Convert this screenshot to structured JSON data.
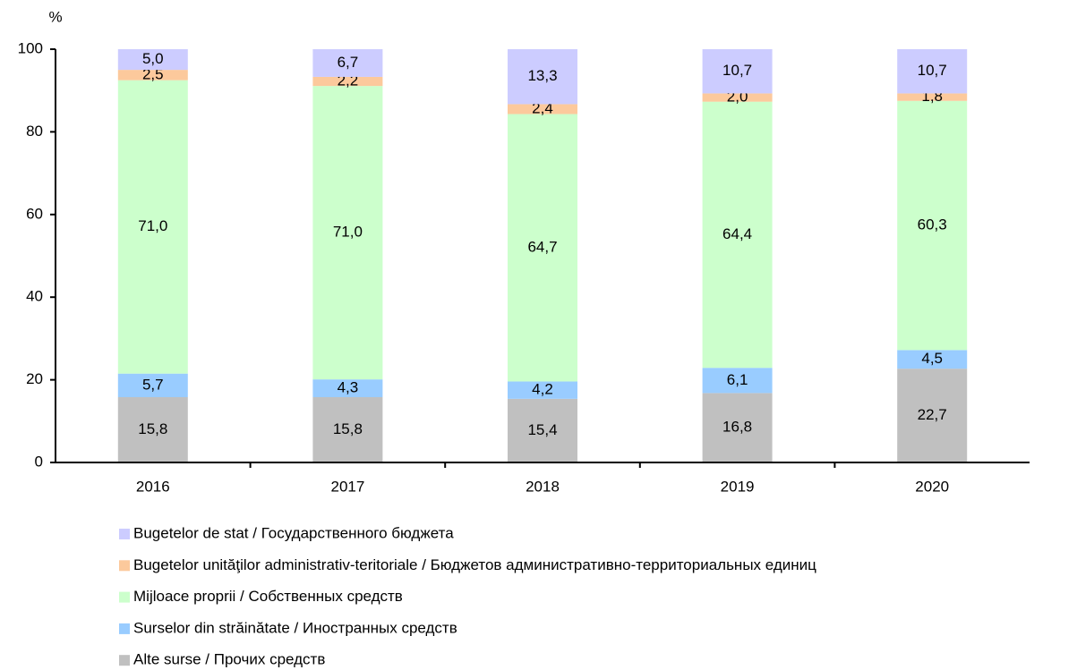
{
  "chart_data": {
    "type": "stacked_bar",
    "ylabel": "%",
    "categories": [
      "2016",
      "2017",
      "2018",
      "2019",
      "2020"
    ],
    "ylim": [
      0,
      100
    ],
    "yticks": [
      0,
      20,
      40,
      60,
      80,
      100
    ],
    "series": [
      {
        "name": "Bugetelor de stat / Государственного бюджета",
        "color": "#ccccff",
        "values": [
          5.0,
          6.7,
          13.3,
          10.7,
          10.7
        ],
        "value_labels": [
          "5,0",
          "6,7",
          "13,3",
          "10,7",
          "10,7"
        ]
      },
      {
        "name": "Bugetelor unităţilor administrativ-teritoriale / Бюджетов административно-территориальных единиц",
        "color": "#fcc99c",
        "values": [
          2.5,
          2.2,
          2.4,
          2.0,
          1.8
        ],
        "value_labels": [
          "2,5",
          "2,2",
          "2,4",
          "2,0",
          "1,8"
        ]
      },
      {
        "name": "Mijloace proprii / Собственных средств",
        "color": "#ccffcc",
        "values": [
          71.0,
          71.0,
          64.7,
          64.4,
          60.3
        ],
        "value_labels": [
          "71,0",
          "71,0",
          "64,7",
          "64,4",
          "60,3"
        ]
      },
      {
        "name": "Surselor din străinătate / Иностранных средств",
        "color": "#99ccff",
        "values": [
          5.7,
          4.3,
          4.2,
          6.1,
          4.5
        ],
        "value_labels": [
          "5,7",
          "4,3",
          "4,2",
          "6,1",
          "4,5"
        ]
      },
      {
        "name": "Alte surse / Прочих средств",
        "color": "#c0c0c0",
        "values": [
          15.8,
          15.8,
          15.4,
          16.8,
          22.7
        ],
        "value_labels": [
          "15,8",
          "15,8",
          "15,4",
          "16,8",
          "22,7"
        ]
      }
    ]
  }
}
